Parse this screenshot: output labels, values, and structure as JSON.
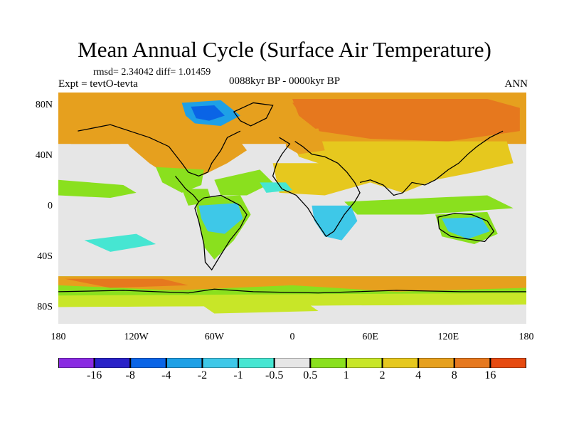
{
  "title": "Mean Annual Cycle (Surface Air Temperature)",
  "stats": "rmsd= 2.34042 diff= 1.01459",
  "expt": "Expt = tevtO-tevta",
  "period": "0088kyr BP - 0000kyr BP",
  "season": "ANN",
  "lat_labels": [
    "80N",
    "40N",
    "0",
    "40S",
    "80S"
  ],
  "lon_labels": [
    "180",
    "120W",
    "60W",
    "0",
    "60E",
    "120E",
    "180"
  ],
  "colorbar": {
    "colors": [
      "#8a2be2",
      "#2a22c8",
      "#0a64e6",
      "#1ea0e6",
      "#3ec8e8",
      "#46e6d2",
      "#e6e6e6",
      "#8ae01e",
      "#c8e628",
      "#e6c81e",
      "#e6a01e",
      "#e6781e",
      "#e64a10"
    ],
    "labels": [
      "-16",
      "-8",
      "-4",
      "-2",
      "-1",
      "-0.5",
      "0.5",
      "1",
      "2",
      "4",
      "8",
      "16"
    ]
  }
}
